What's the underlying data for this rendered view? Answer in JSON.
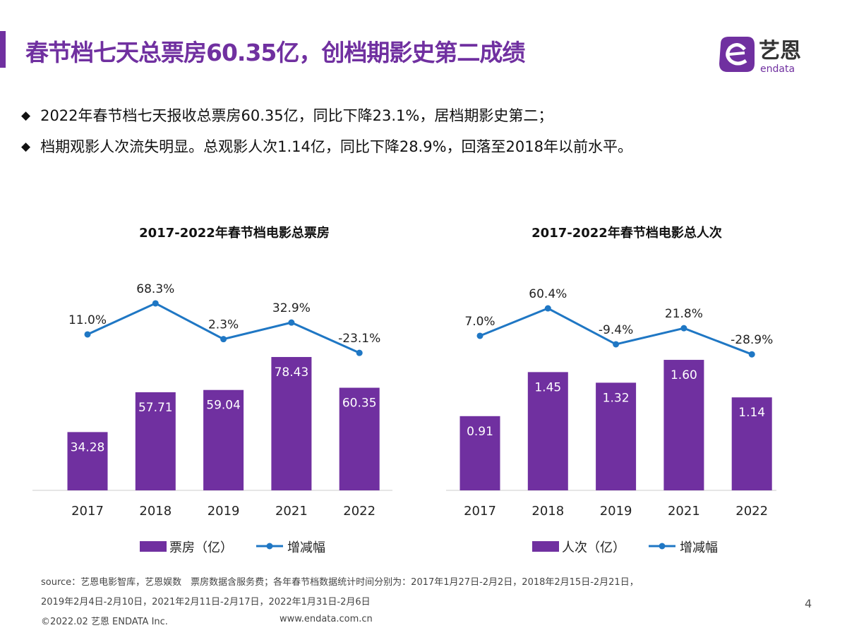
{
  "header": {
    "title": "春节档七天总票房60.35亿，创档期影史第二成绩",
    "logo_text": "艺恩",
    "logo_sub": "endata"
  },
  "bullets": [
    "2022年春节档七天报收总票房60.35亿，同比下降23.1%，居档期影史第二；",
    "档期观影人次流失明显。总观影人次1.14亿，同比下降28.9%，回落至2018年以前水平。"
  ],
  "bullet_icon": "diamond-icon",
  "colors": {
    "accent": "#7030a0",
    "bar": "#7030a0",
    "line": "#1f77c4"
  },
  "chart_data": [
    {
      "type": "bar+line",
      "title": "2017-2022年春节档电影总票房",
      "categories": [
        "2017",
        "2018",
        "2019",
        "2021",
        "2022"
      ],
      "series": [
        {
          "name": "票房（亿）",
          "type": "bar",
          "values": [
            34.28,
            57.71,
            59.04,
            78.43,
            60.35
          ],
          "labels": [
            "34.28",
            "57.71",
            "59.04",
            "78.43",
            "60.35"
          ]
        },
        {
          "name": "增减幅",
          "type": "line",
          "values": [
            11.0,
            68.3,
            2.3,
            32.9,
            -23.1
          ],
          "labels": [
            "11.0%",
            "68.3%",
            "2.3%",
            "32.9%",
            "-23.1%"
          ]
        }
      ],
      "legend": "bottom",
      "grid": false
    },
    {
      "type": "bar+line",
      "title": "2017-2022年春节档电影总人次",
      "categories": [
        "2017",
        "2018",
        "2019",
        "2021",
        "2022"
      ],
      "series": [
        {
          "name": "人次（亿）",
          "type": "bar",
          "values": [
            0.91,
            1.45,
            1.32,
            1.6,
            1.14
          ],
          "labels": [
            "0.91",
            "1.45",
            "1.32",
            "1.60",
            "1.14"
          ]
        },
        {
          "name": "增减幅",
          "type": "line",
          "values": [
            7.0,
            60.4,
            -9.4,
            21.8,
            -28.9
          ],
          "labels": [
            "7.0%",
            "60.4%",
            "-9.4%",
            "21.8%",
            "-28.9%"
          ]
        }
      ],
      "legend": "bottom",
      "grid": false
    }
  ],
  "footer": {
    "source_line1": "source：艺恩电影智库，艺恩娱数　票房数据含服务费；各年春节档数据统计时间分别为：2017年1月27日-2月2日，2018年2月15日-2月21日，",
    "source_line2": "2019年2月4日-2月10日，2021年2月11日-2月17日，2022年1月31日-2月6日",
    "copyright": "©2022.02 艺恩 ENDATA Inc.",
    "url": "www.endata.com.cn",
    "page": "4"
  }
}
